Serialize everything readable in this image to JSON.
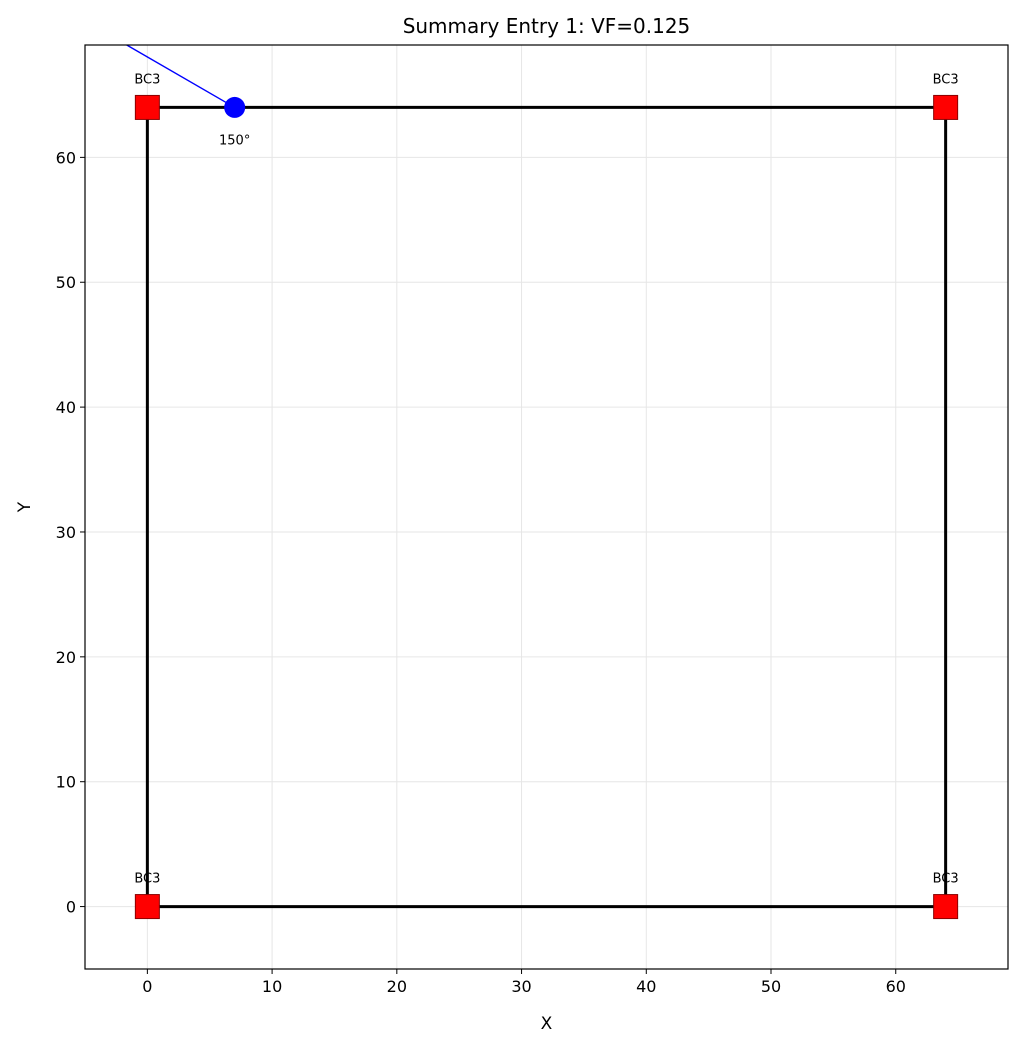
{
  "chart_data": {
    "type": "scatter",
    "title": "Summary Entry 1: VF=0.125",
    "xlabel": "X",
    "ylabel": "Y",
    "xlim": [
      -5,
      69
    ],
    "ylim": [
      -5,
      69
    ],
    "xticks": [
      0,
      10,
      20,
      30,
      40,
      50,
      60
    ],
    "yticks": [
      0,
      10,
      20,
      30,
      40,
      50,
      60
    ],
    "xtick_labels": [
      "0",
      "10",
      "20",
      "30",
      "40",
      "50",
      "60"
    ],
    "ytick_labels": [
      "0",
      "10",
      "20",
      "30",
      "40",
      "50",
      "60"
    ],
    "grid": true,
    "frame_edges": [
      {
        "x1": 0,
        "y1": 0,
        "x2": 64,
        "y2": 0
      },
      {
        "x1": 64,
        "y1": 0,
        "x2": 64,
        "y2": 64
      },
      {
        "x1": 64,
        "y1": 64,
        "x2": 0,
        "y2": 64
      },
      {
        "x1": 0,
        "y1": 64,
        "x2": 0,
        "y2": 0
      }
    ],
    "supports": [
      {
        "x": 0,
        "y": 64,
        "label": "BC3"
      },
      {
        "x": 64,
        "y": 64,
        "label": "BC3"
      },
      {
        "x": 0,
        "y": 0,
        "label": "BC3"
      },
      {
        "x": 64,
        "y": 0,
        "label": "BC3"
      }
    ],
    "loads": [
      {
        "x": 7,
        "y": 64,
        "angle_label": "150°",
        "angle_deg": 150,
        "line_to": {
          "x": -2,
          "y": 69.2
        }
      }
    ],
    "colors": {
      "frame": "#000000",
      "support_fill": "#ff0000",
      "support_edge": "#8b0000",
      "load": "#0000ff",
      "grid": "#e6e6e6"
    }
  }
}
